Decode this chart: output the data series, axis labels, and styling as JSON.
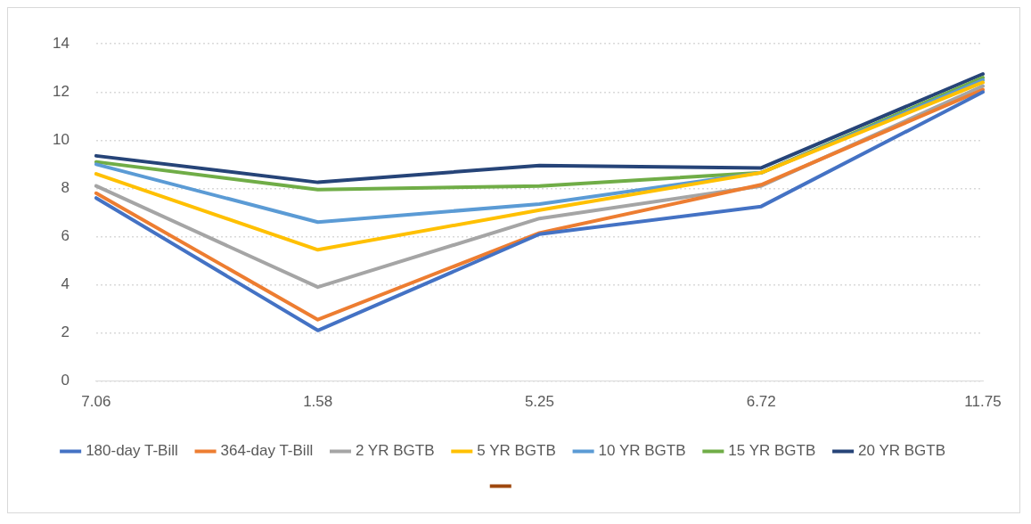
{
  "chart_data": {
    "type": "line",
    "categories": [
      "7.06",
      "1.58",
      "5.25",
      "6.72",
      "11.75"
    ],
    "series": [
      {
        "name": "180-day T-Bill",
        "color": "#4472c4",
        "values": [
          7.6,
          2.1,
          6.1,
          7.25,
          12.0
        ]
      },
      {
        "name": "364-day T-Bill",
        "color": "#ed7d31",
        "values": [
          7.8,
          2.55,
          6.15,
          8.15,
          12.1
        ]
      },
      {
        "name": "2 YR BGTB",
        "color": "#a5a5a5",
        "values": [
          8.1,
          3.9,
          6.75,
          8.1,
          12.25
        ]
      },
      {
        "name": "5 YR BGTB",
        "color": "#ffc000",
        "values": [
          8.6,
          5.45,
          7.1,
          8.65,
          12.4
        ]
      },
      {
        "name": "10 YR BGTB",
        "color": "#5b9bd5",
        "values": [
          9.0,
          6.6,
          7.35,
          8.65,
          12.5
        ]
      },
      {
        "name": "15 YR BGTB",
        "color": "#70ad47",
        "values": [
          9.1,
          7.95,
          8.1,
          8.65,
          12.6
        ]
      },
      {
        "name": "20 YR BGTB",
        "color": "#264478",
        "values": [
          9.35,
          8.25,
          8.95,
          8.85,
          12.75
        ]
      },
      {
        "color": "#9e480e",
        "values": [
          null,
          null,
          null,
          null,
          null
        ]
      }
    ],
    "ylim": [
      0,
      14
    ],
    "yticks": [
      0,
      2,
      4,
      6,
      8,
      10,
      12,
      14
    ],
    "grid": "y",
    "legend": "bottom",
    "marker": "none",
    "line_style": "solid"
  }
}
